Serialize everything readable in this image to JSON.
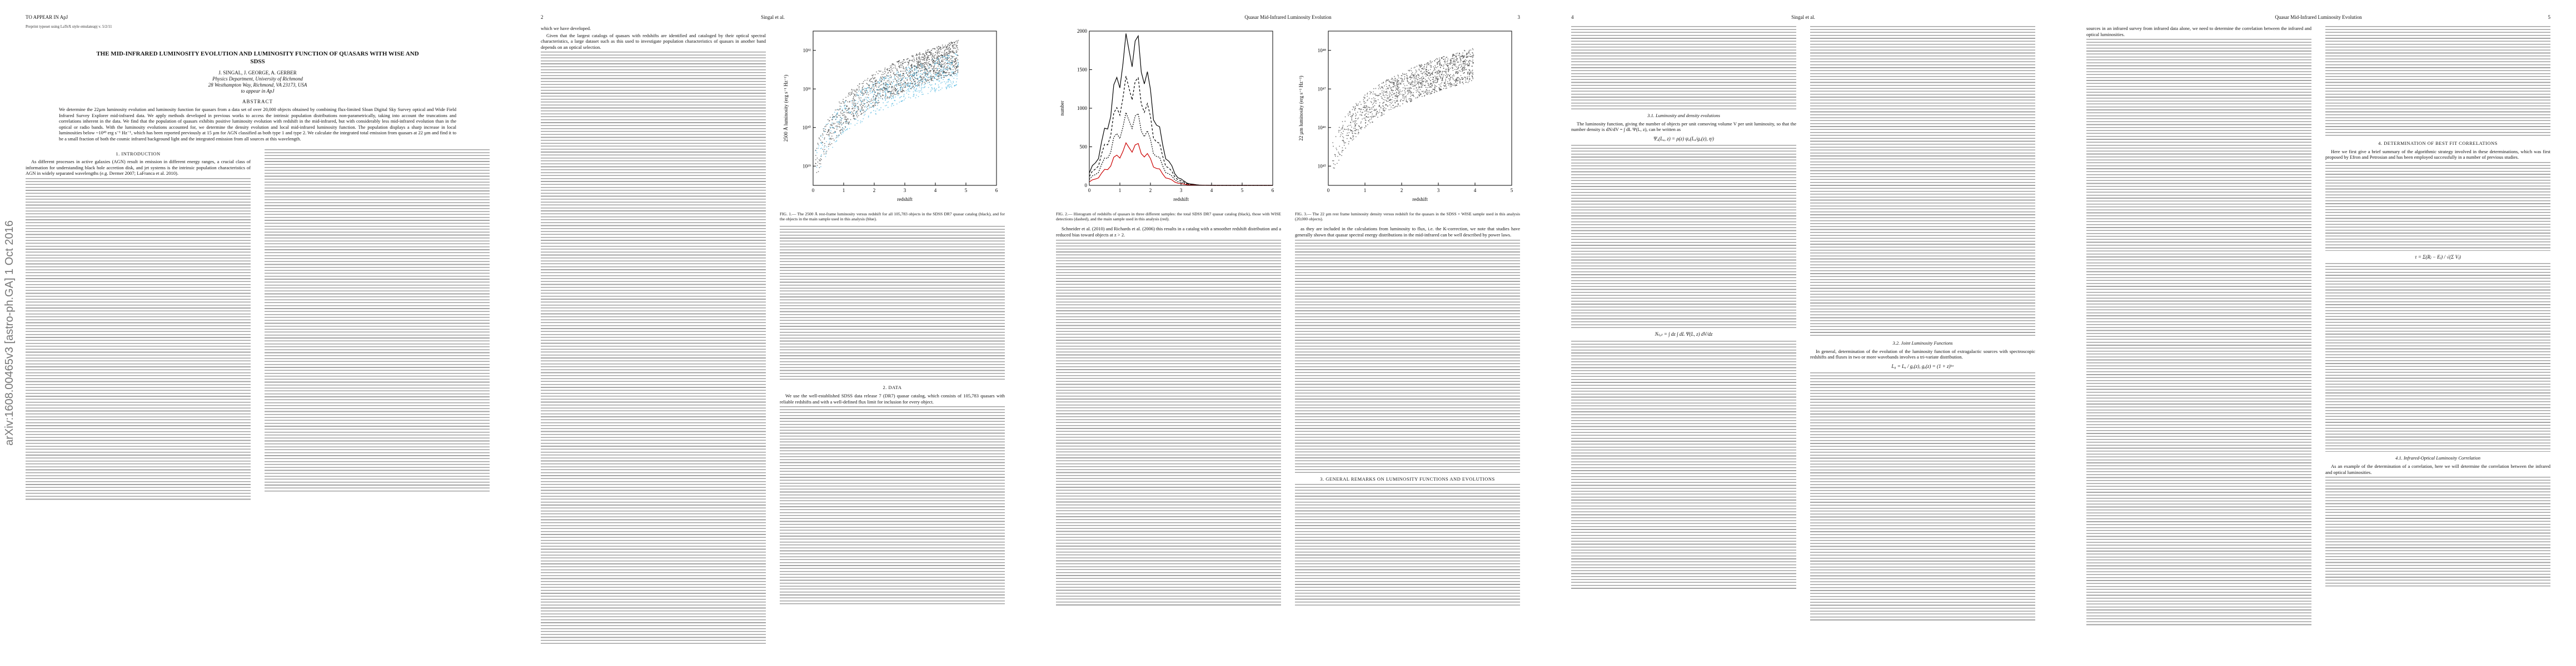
{
  "stamp": "arXiv:1608.00465v3 [astro-ph.GA] 1 Oct 2016",
  "page1": {
    "header": "TO APPEAR IN ApJ",
    "preprint": "Preprint typeset using LaTeX style emulateapj v. 5/2/11",
    "title": "THE MID-INFRARED LUMINOSITY EVOLUTION AND LUMINOSITY FUNCTION OF QUASARS WITH WISE AND SDSS",
    "authors": "J. SINGAL, J. GEORGE, A. GERBER",
    "affiliation": "Physics Department, University of Richmond",
    "address": "28 Westhampton Way, Richmond, VA 23173, USA",
    "status": "to appear in ApJ",
    "abstract_heading": "ABSTRACT",
    "abstract": "We determine the 22µm luminosity evolution and luminosity function for quasars from a data set of over 20,000 objects obtained by combining flux-limited Sloan Digital Sky Survey optical and Wide Field Infrared Survey Explorer mid-infrared data. We apply methods developed in previous works to access the intrinsic population distributions non-parametrically, taking into account the truncations and correlations inherent in the data. We find that the population of quasars exhibits positive luminosity evolution with redshift in the mid-infrared, but with considerably less mid-infrared evolution than in the optical or radio bands. With the luminosity evolutions accounted for, we determine the density evolution and local mid-infrared luminosity function. The population displays a sharp increase in local luminosities below ~10⁴³ erg s⁻¹ Hz⁻¹, which has been reported previously at 15 µm for AGN classified as both type 1 and type 2. We calculate the integrated total emission from quasars at 22 µm and find it to be a small fraction of both the cosmic infrared background light and the integrated emission from all sources at this wavelength.",
    "intro_heading": "1. INTRODUCTION",
    "intro": "As different processes in active galaxies (AGN) result in emission in different energy ranges, a crucial class of information for understanding black hole accretion disk, and jet systems is the intrinsic population characteristics of AGN in widely separated wavelengths (e.g. Dermer 2007; LaFranca et al. 2010)."
  },
  "page2": {
    "number": "2",
    "running_head": "Singal et al.",
    "left": "which we have developed.",
    "left2": "Given that the largest catalogs of quasars with redshifts are identified and cataloged by their optical spectral characteristics, a large dataset such as this used to investigate population characteristics of quasars in another band depends on an optical selection.",
    "fig1_caption": "FIG. 1.— The 2500 Å rest-frame luminosity versus redshift for all 105,783 objects in the SDSS DR7 quasar catalog (black), and for the objects in the main sample used in this analysis (blue).",
    "data_heading": "2. DATA",
    "data": "We use the well-established SDSS data release 7 (DR7) quasar catalog, which consists of 105,783 quasars with reliable redshifts and with a well-defined flux limit for inclusion for every object."
  },
  "page3": {
    "running_head": "Quasar Mid-Infrared Luminosity Evolution",
    "number": "3",
    "fig2_caption": "FIG. 2.— Histogram of redshifts of quasars in three different samples: the total SDSS DR7 quasar catalog (black), those with WISE detections (dashed), and the main sample used in this analysis (red).",
    "fig3_caption": "FIG. 3.— The 22 µm rest frame luminosity density versus redshift for the quasars in the SDSS + WISE sample used in this analysis (20,000 objects).",
    "text_left": "Schneider et al. (2010) and Richards et al. (2006) this results in a catalog with a smoother redshift distribution and a reduced bias toward objects at z > 2.",
    "text_right": "as they are included in the calculations from luminosity to flux, i.e. the K-correction, we note that studies have generally shown that quasar spectral energy distributions in the mid-infrared can be well described by power laws.",
    "sec3": "3. GENERAL REMARKS ON LUMINOSITY FUNCTIONS AND EVOLUTIONS"
  },
  "page4": {
    "number": "4",
    "running_head": "Singal et al.",
    "sub31": "3.1. Luminosity and density evolutions",
    "text1": "The luminosity function, giving the number of objects per unit comoving volume V per unit luminosity, so that the number density is dN/dV = ∫ dL Ψ(L, z), can be written as",
    "eq1": "Ψₐ(Lₐ, z) = ρ(z) ψₐ(Lₐ/gₐ(z), ηʲ)",
    "eq2": "Nₜₒₜ = ∫ dz ∫ dL Ψ(L, z) dV/dz",
    "sub32": "3.2. Joint Luminosity Functions",
    "text2": "In general, determination of the evolution of the luminosity function of extragalactic sources with spectroscopic redshifts and fluxes in two or more wavebands involves a tri-variate distribution.",
    "eq3": "L₀ = Lₐ / gₐ(z),   gₐ(z) = (1 + z)ᵏᵃ"
  },
  "page5": {
    "running_head": "Quasar Mid-Infrared Luminosity Evolution",
    "number": "5",
    "text1": "sources in an infrared survey from infrared data alone, we need to determine the correlation between the infrared and optical luminosities.",
    "sec4": "4. DETERMINATION OF BEST FIT CORRELATIONS",
    "text2": "Here we first give a brief summary of the algorithmic strategy involved in these determinations, which was first proposed by Efron and Petrosian and has been employed successfully in a number of previous studies.",
    "eq": "τ = Σ(Rⱼ − Eⱼ) / √(Σ Vⱼ)",
    "sub41": "4.1. Infrared-Optical Luminosity Correlation",
    "text3": "As an example of the determination of a correlation, here we will determine the correlation between the infrared and optical luminosities."
  },
  "figures": {
    "fig1": {
      "ylabel": "2500 Å luminosity (erg s⁻¹ Hz⁻¹)",
      "xlabel": "redshift",
      "xticks": [
        "0",
        "1",
        "2",
        "3",
        "4",
        "5",
        "6"
      ],
      "yticks": [
        "10²⁹",
        "10³⁰",
        "10³¹",
        "10³²"
      ]
    },
    "fig2": {
      "ylabel": "number",
      "xlabel": "redshift",
      "xticks": [
        "0",
        "1",
        "2",
        "3",
        "4",
        "5",
        "6"
      ],
      "yticks": [
        "0",
        "500",
        "1000",
        "1500",
        "2000"
      ]
    },
    "fig3": {
      "ylabel": "22 µm luminosity (erg s⁻¹ Hz⁻¹)",
      "xlabel": "redshift",
      "xticks": [
        "0",
        "1",
        "2",
        "3",
        "4",
        "5"
      ],
      "yticks": [
        "10⁴⁵",
        "10⁴⁶",
        "10⁴⁷",
        "10⁴⁸"
      ]
    }
  }
}
